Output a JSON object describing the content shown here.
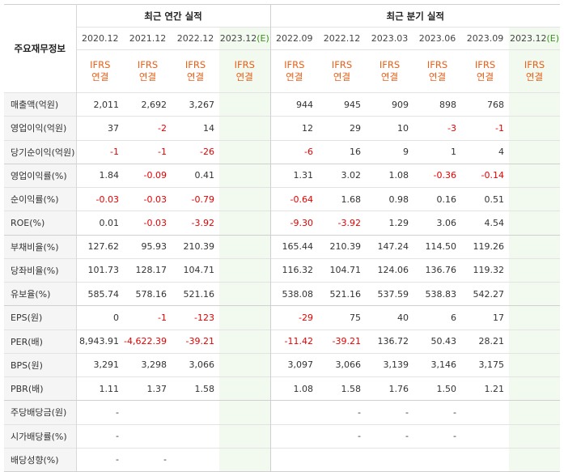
{
  "header": {
    "row_label": "주요재무정보",
    "annual_title": "최근 연간 실적",
    "quarter_title": "최근 분기 실적",
    "annual_periods": [
      "2020.12",
      "2021.12",
      "2022.12"
    ],
    "annual_est_period": "2023.12",
    "quarter_periods": [
      "2022.09",
      "2022.12",
      "2023.03",
      "2023.06",
      "2023.09"
    ],
    "quarter_est_period": "2023.12",
    "est_mark": "(E)",
    "ifrs": "IFRS",
    "consolidated": "연결"
  },
  "rows": [
    {
      "label": "매출액(억원)",
      "annual": [
        "2,011",
        "2,692",
        "3,267",
        ""
      ],
      "quarter": [
        "944",
        "945",
        "909",
        "898",
        "768",
        ""
      ]
    },
    {
      "label": "영업이익(억원)",
      "annual": [
        "37",
        "-2",
        "14",
        ""
      ],
      "quarter": [
        "12",
        "29",
        "10",
        "-3",
        "-1",
        ""
      ]
    },
    {
      "label": "당기순이익(억원)",
      "annual": [
        "-1",
        "-1",
        "-26",
        ""
      ],
      "quarter": [
        "-6",
        "16",
        "9",
        "1",
        "4",
        ""
      ]
    },
    {
      "label": "영업이익률(%)",
      "annual": [
        "1.84",
        "-0.09",
        "0.41",
        ""
      ],
      "quarter": [
        "1.31",
        "3.02",
        "1.08",
        "-0.36",
        "-0.14",
        ""
      ]
    },
    {
      "label": "순이익률(%)",
      "annual": [
        "-0.03",
        "-0.03",
        "-0.79",
        ""
      ],
      "quarter": [
        "-0.64",
        "1.68",
        "0.98",
        "0.16",
        "0.51",
        ""
      ]
    },
    {
      "label": "ROE(%)",
      "annual": [
        "0.01",
        "-0.03",
        "-3.92",
        ""
      ],
      "quarter": [
        "-9.30",
        "-3.92",
        "1.29",
        "3.06",
        "4.54",
        ""
      ]
    },
    {
      "label": "부채비율(%)",
      "annual": [
        "127.62",
        "95.93",
        "210.39",
        ""
      ],
      "quarter": [
        "165.44",
        "210.39",
        "147.24",
        "114.50",
        "119.26",
        ""
      ]
    },
    {
      "label": "당좌비율(%)",
      "annual": [
        "101.73",
        "128.17",
        "104.71",
        ""
      ],
      "quarter": [
        "116.32",
        "104.71",
        "124.06",
        "136.76",
        "119.32",
        ""
      ]
    },
    {
      "label": "유보율(%)",
      "annual": [
        "585.74",
        "578.16",
        "521.16",
        ""
      ],
      "quarter": [
        "538.08",
        "521.16",
        "537.59",
        "538.83",
        "542.27",
        ""
      ]
    },
    {
      "label": "EPS(원)",
      "annual": [
        "0",
        "-1",
        "-123",
        ""
      ],
      "quarter": [
        "-29",
        "75",
        "40",
        "6",
        "17",
        ""
      ]
    },
    {
      "label": "PER(배)",
      "annual": [
        "8,943.91",
        "-4,622.39",
        "-39.21",
        ""
      ],
      "quarter": [
        "-11.42",
        "-39.21",
        "136.72",
        "50.43",
        "28.21",
        ""
      ]
    },
    {
      "label": "BPS(원)",
      "annual": [
        "3,291",
        "3,298",
        "3,066",
        ""
      ],
      "quarter": [
        "3,097",
        "3,066",
        "3,139",
        "3,146",
        "3,175",
        ""
      ]
    },
    {
      "label": "PBR(배)",
      "annual": [
        "1.11",
        "1.37",
        "1.58",
        ""
      ],
      "quarter": [
        "1.08",
        "1.58",
        "1.76",
        "1.50",
        "1.21",
        ""
      ]
    },
    {
      "label": "주당배당금(원)",
      "annual": [
        "-",
        "",
        "",
        ""
      ],
      "quarter": [
        "",
        "-",
        "-",
        "-",
        "",
        ""
      ]
    },
    {
      "label": "시가배당률(%)",
      "annual": [
        "-",
        "",
        "",
        ""
      ],
      "quarter": [
        "",
        "-",
        "-",
        "-",
        "",
        ""
      ]
    },
    {
      "label": "배당성향(%)",
      "annual": [
        "-",
        "-",
        "",
        ""
      ],
      "quarter": [
        "",
        "",
        "",
        "",
        "",
        ""
      ]
    }
  ]
}
